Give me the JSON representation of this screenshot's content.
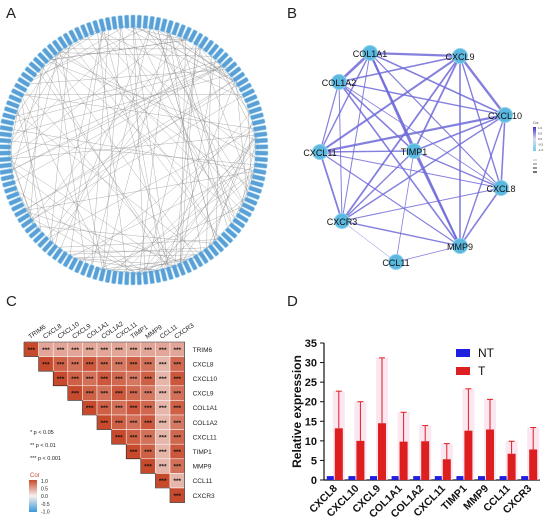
{
  "panels": {
    "a": {
      "label": "A"
    },
    "b": {
      "label": "B"
    },
    "c": {
      "label": "C"
    },
    "d": {
      "label": "D"
    }
  },
  "network_b": {
    "nodes": [
      "COL1A1",
      "CXCL9",
      "COL1A2",
      "CXCL10",
      "CXCL11",
      "TIMP1",
      "CXCL8",
      "CXCR3",
      "MMP9",
      "CCL11"
    ],
    "legend_corr_title": "Cor",
    "legend_corr_ticks": [
      "1.0",
      "0.5",
      "0.0",
      "-0.5",
      "-1.0"
    ]
  },
  "corr_c": {
    "genes": [
      "TRIM6",
      "CXCL8",
      "CXCL10",
      "CXCL9",
      "COL1A1",
      "COL1A2",
      "CXCL11",
      "TIMP1",
      "MMP9",
      "CCL11",
      "CXCR3"
    ],
    "significance_notes": [
      "* p < 0.05",
      "** p < 0.01",
      "*** p < 0.001"
    ],
    "colorbar_title": "Cor",
    "colorbar_ticks": [
      "1.0",
      "0.5",
      "0.0",
      "-0.5",
      "-1.0"
    ],
    "colors": {
      "high": "#c84a2c",
      "mid": "#f7f0ee",
      "low": "#3a9ad9"
    }
  },
  "chart_data": {
    "type": "bar",
    "categories": [
      "CXCL8",
      "CXCL10",
      "CXCL9",
      "COL1A1",
      "COL1A2",
      "CXCL11",
      "TIMP1",
      "MMP9",
      "CCL11",
      "CXCR3"
    ],
    "series": [
      {
        "name": "NT",
        "values": [
          1,
          1,
          1,
          1,
          1,
          1,
          1,
          1,
          1,
          1
        ],
        "color": "#1f1fe0"
      },
      {
        "name": "T",
        "values": [
          13.2,
          10.0,
          14.5,
          9.8,
          9.9,
          5.3,
          12.6,
          12.9,
          6.7,
          7.8
        ],
        "errors": [
          9.5,
          10.0,
          16.7,
          7.5,
          4.0,
          4.0,
          10.7,
          7.7,
          3.2,
          5.6
        ],
        "color": "#dd1f1f"
      }
    ],
    "ylabel": "Relative expression",
    "ylim": [
      0,
      35
    ],
    "yticks": [
      0,
      5,
      10,
      15,
      20,
      25,
      30,
      35
    ],
    "legend": "top-right"
  }
}
